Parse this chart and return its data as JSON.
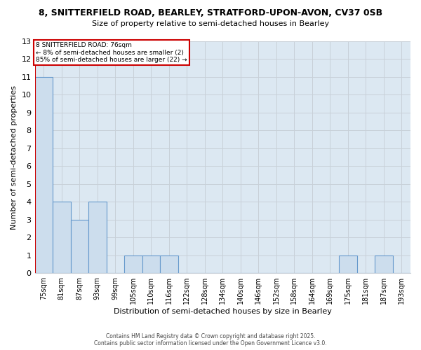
{
  "title_line1": "8, SNITTERFIELD ROAD, BEARLEY, STRATFORD-UPON-AVON, CV37 0SB",
  "title_line2": "Size of property relative to semi-detached houses in Bearley",
  "xlabel": "Distribution of semi-detached houses by size in Bearley",
  "ylabel": "Number of semi-detached properties",
  "categories": [
    "75sqm",
    "81sqm",
    "87sqm",
    "93sqm",
    "99sqm",
    "105sqm",
    "110sqm",
    "116sqm",
    "122sqm",
    "128sqm",
    "134sqm",
    "140sqm",
    "146sqm",
    "152sqm",
    "158sqm",
    "164sqm",
    "169sqm",
    "175sqm",
    "181sqm",
    "187sqm",
    "193sqm"
  ],
  "values": [
    11,
    4,
    3,
    4,
    0,
    1,
    1,
    1,
    0,
    0,
    0,
    0,
    0,
    0,
    0,
    0,
    0,
    1,
    0,
    1,
    0
  ],
  "bar_color": "#ccdded",
  "bar_edge_color": "#6699cc",
  "annotation_line1": "8 SNITTERFIELD ROAD: 76sqm",
  "annotation_line2": "← 8% of semi-detached houses are smaller (2)",
  "annotation_line3": "85% of semi-detached houses are larger (22) →",
  "annotation_box_color": "#ffffff",
  "annotation_border_color": "#cc0000",
  "red_line_color": "#cc0000",
  "ylim_max": 13,
  "yticks": [
    0,
    1,
    2,
    3,
    4,
    5,
    6,
    7,
    8,
    9,
    10,
    11,
    12,
    13
  ],
  "grid_color": "#c8d0d8",
  "bg_color": "#dce8f2",
  "footnote_line1": "Contains HM Land Registry data © Crown copyright and database right 2025.",
  "footnote_line2": "Contains public sector information licensed under the Open Government Licence v3.0."
}
